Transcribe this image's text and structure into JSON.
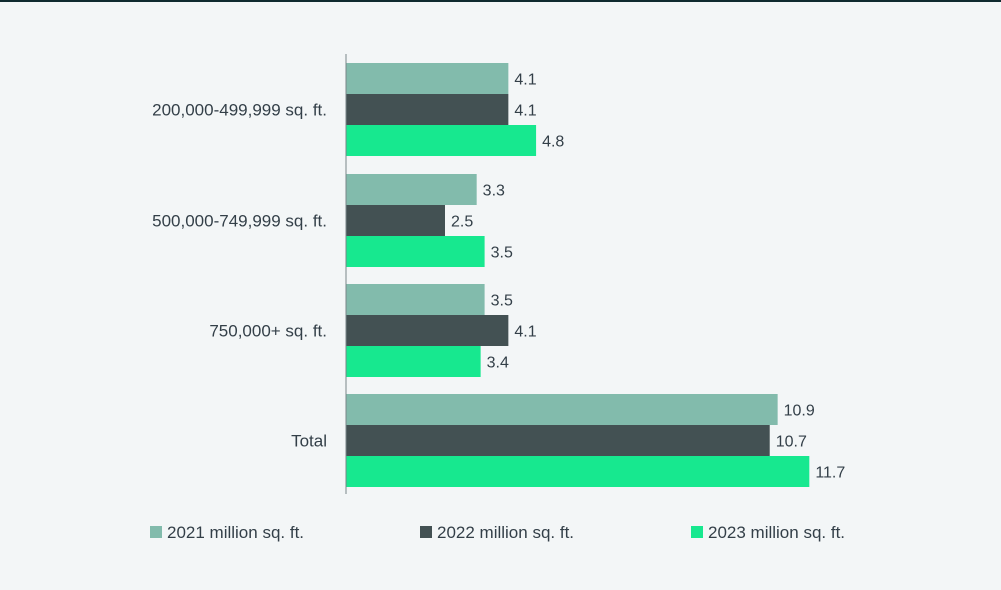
{
  "chart_data": {
    "type": "bar",
    "orientation": "horizontal",
    "title": "",
    "xlabel": "",
    "ylabel": "",
    "xlim": [
      0,
      12
    ],
    "grid": false,
    "legend_position": "bottom",
    "categories": [
      "200,000-499,999 sq. ft.",
      "500,000-749,999 sq. ft.",
      "750,000+ sq. ft.",
      "Total"
    ],
    "series": [
      {
        "name": "2021 million sq. ft.",
        "color": "#82bbac",
        "values": [
          4.1,
          3.3,
          3.5,
          10.9
        ]
      },
      {
        "name": "2022 million sq. ft.",
        "color": "#435153",
        "values": [
          4.1,
          2.5,
          4.1,
          10.7
        ]
      },
      {
        "name": "2023 million sq. ft.",
        "color": "#17e88f",
        "values": [
          4.8,
          3.5,
          3.4,
          11.7
        ]
      }
    ],
    "axis_color": "#7a8589",
    "text_color": "#333f48"
  }
}
